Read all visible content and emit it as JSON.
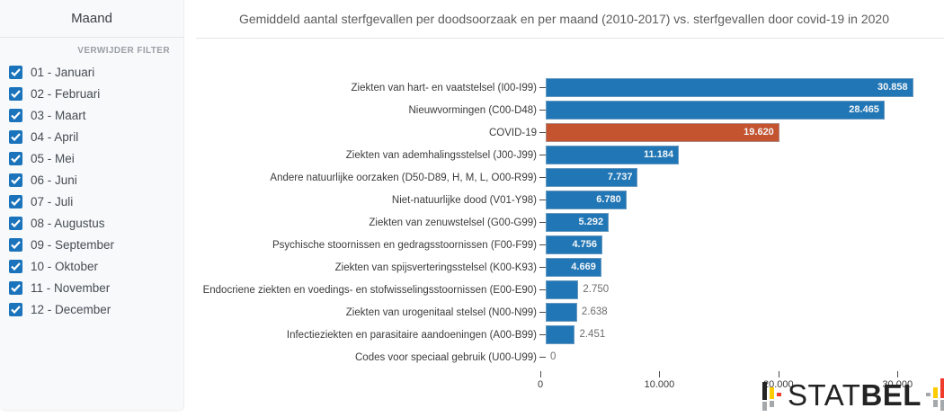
{
  "sidebar": {
    "title": "Maand",
    "clear_filter_label": "VERWIJDER FILTER",
    "months": [
      {
        "label": "01 - Januari",
        "checked": true
      },
      {
        "label": "02 - Februari",
        "checked": true
      },
      {
        "label": "03 - Maart",
        "checked": true
      },
      {
        "label": "04 - April",
        "checked": true
      },
      {
        "label": "05 - Mei",
        "checked": true
      },
      {
        "label": "06 - Juni",
        "checked": true
      },
      {
        "label": "07 - Juli",
        "checked": true
      },
      {
        "label": "08 - Augustus",
        "checked": true
      },
      {
        "label": "09 - September",
        "checked": true
      },
      {
        "label": "10 - Oktober",
        "checked": true
      },
      {
        "label": "11 - November",
        "checked": true
      },
      {
        "label": "12 - December",
        "checked": true
      }
    ]
  },
  "main": {
    "title": "Gemiddeld aantal sterfgevallen per doodsoorzaak en per maand (2010-2017) vs. sterfgevallen door covid-19 in 2020"
  },
  "chart_data": {
    "type": "bar",
    "orientation": "horizontal",
    "title": "Gemiddeld aantal sterfgevallen per doodsoorzaak en per maand (2010-2017) vs. sterfgevallen door covid-19 in 2020",
    "categories": [
      "Ziekten van hart- en vaatstelsel (I00-I99)",
      "Nieuwvormingen (C00-D48)",
      "COVID-19",
      "Ziekten van ademhalingsstelsel (J00-J99)",
      "Andere natuurlijke oorzaken (D50-D89, H, M, L, O00-R99)",
      "Niet-natuurlijke dood (V01-Y98)",
      "Ziekten van zenuwstelsel (G00-G99)",
      "Psychische stoornissen en gedragsstoornissen (F00-F99)",
      "Ziekten van spijsverteringsstelsel (K00-K93)",
      "Endocriene ziekten en voedings- en stofwisselingsstoornissen (E00-E90)",
      "Ziekten van urogenitaal stelsel (N00-N99)",
      "Infectieziekten en parasitaire aandoeningen (A00-B99)",
      "Codes voor speciaal gebruik (U00-U99)"
    ],
    "values": [
      30858,
      28465,
      19620,
      11184,
      7737,
      6780,
      5292,
      4756,
      4669,
      2750,
      2638,
      2451,
      0
    ],
    "values_formatted": [
      "30.858",
      "28.465",
      "19.620",
      "11.184",
      "7.737",
      "6.780",
      "5.292",
      "4.756",
      "4.669",
      "2.750",
      "2.638",
      "2.451",
      "0"
    ],
    "highlight_index": 2,
    "highlight_category": "COVID-19",
    "colors": {
      "bar": "#2176b5",
      "highlight": "#c4532f"
    },
    "xlim": [
      0,
      33000
    ],
    "x_ticks": [
      0,
      10000,
      20000,
      30000
    ],
    "x_tick_labels": [
      "0",
      "10.000",
      "20.000",
      "30.000"
    ],
    "grid": false,
    "legend": false
  },
  "logo": {
    "text_light": "STAT",
    "text_bold": "BEL",
    "colors": {
      "black": "#232323",
      "yellow": "#ffcc00",
      "red": "#ee3b2b",
      "gray": "#a6a9ac"
    }
  }
}
